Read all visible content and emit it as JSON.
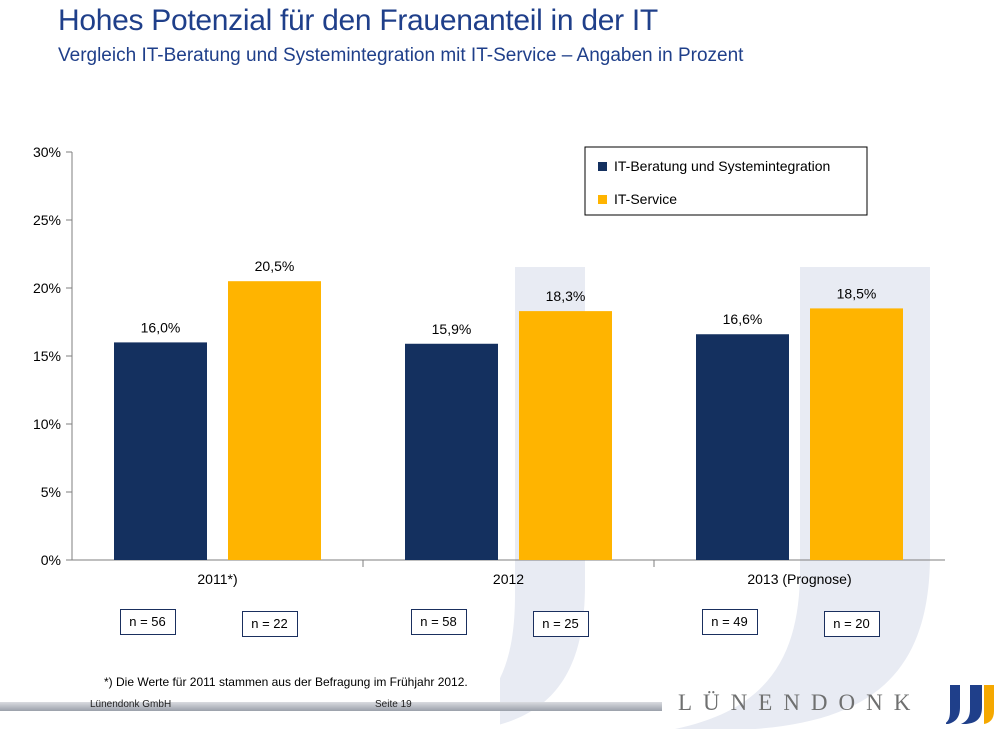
{
  "slide": {
    "title": "Hohes Potenzial für den Frauenanteil in der IT",
    "subtitle": "Vergleich IT-Beratung und Systemintegration mit IT-Service – Angaben in Prozent",
    "footnote": "*) Die Werte für 2011 stammen aus der Befragung im Frühjahr 2012.",
    "footer_company": "Lünendonk GmbH",
    "footer_page": "Seite 19",
    "logo_text": "LÜNENDONK"
  },
  "colors": {
    "title": "#1f3f8a",
    "series_1": "#14305f",
    "series_2": "#ffb400",
    "watermark": "#e8ebf3",
    "nbox_border": "#1a2f5e"
  },
  "chart_data": {
    "type": "bar",
    "categories": [
      "2011*)",
      "2012",
      "2013 (Prognose)"
    ],
    "series": [
      {
        "name": "IT-Beratung und Systemintegration",
        "values": [
          16.0,
          15.9,
          16.6
        ],
        "labels": [
          "16,0%",
          "15,9%",
          "16,6%"
        ],
        "n": [
          "n = 56",
          "n = 58",
          "n = 49"
        ]
      },
      {
        "name": "IT-Service",
        "values": [
          20.5,
          18.3,
          18.5
        ],
        "labels": [
          "20,5%",
          "18,3%",
          "18,5%"
        ],
        "n": [
          "n = 22",
          "n = 25",
          "n = 20"
        ]
      }
    ],
    "yticks": [
      0,
      5,
      10,
      15,
      20,
      25,
      30
    ],
    "ytick_labels": [
      "0%",
      "5%",
      "10%",
      "15%",
      "20%",
      "25%",
      "30%"
    ],
    "ylim": [
      0,
      30
    ],
    "legend": "top-right",
    "grid": false,
    "xlabel": "",
    "ylabel": ""
  }
}
